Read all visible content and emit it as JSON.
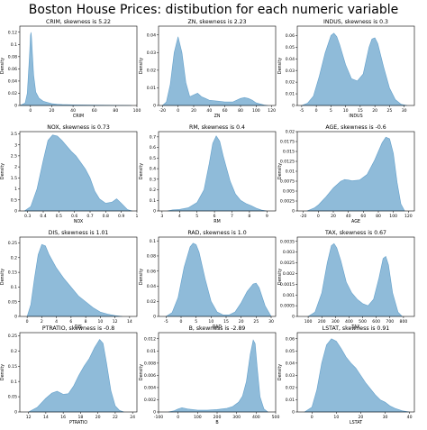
{
  "figure": {
    "title": "Boston House Prices: distibution for each numeric variable"
  },
  "chart_data": [
    {
      "type": "area",
      "title": "CRIM, skewness is 5.22",
      "xlabel": "CRIM",
      "ylabel": "Density",
      "xlim": [
        -10,
        100
      ],
      "ylim": [
        0,
        0.13
      ],
      "xticks": [
        0,
        20,
        40,
        60,
        80,
        100
      ],
      "yticks": [
        0,
        0.02,
        0.04,
        0.06,
        0.08,
        0.1,
        0.12
      ],
      "x": [
        -10,
        -5,
        -3,
        -1,
        0,
        0.5,
        1,
        2,
        3,
        5,
        8,
        12,
        16,
        20,
        25,
        30,
        40,
        50,
        60,
        70,
        80,
        90,
        95
      ],
      "y": [
        0,
        0.004,
        0.02,
        0.08,
        0.115,
        0.12,
        0.112,
        0.08,
        0.05,
        0.022,
        0.012,
        0.007,
        0.005,
        0.003,
        0.002,
        0.0015,
        0.001,
        0.0008,
        0.0006,
        0.0004,
        0.0003,
        0.0001,
        0
      ]
    },
    {
      "type": "area",
      "title": "ZN, skewness is 2.23",
      "xlabel": "ZN",
      "ylabel": "Density",
      "xlim": [
        -25,
        125
      ],
      "ylim": [
        0,
        0.045
      ],
      "xticks": [
        -20,
        0,
        20,
        40,
        60,
        80,
        100,
        120
      ],
      "yticks": [
        0,
        0.01,
        0.02,
        0.03,
        0.04
      ],
      "x": [
        -20,
        -15,
        -10,
        -5,
        0,
        5,
        10,
        15,
        20,
        25,
        30,
        35,
        40,
        50,
        60,
        70,
        80,
        85,
        90,
        95,
        100,
        110,
        115
      ],
      "y": [
        0,
        0.002,
        0.012,
        0.03,
        0.039,
        0.03,
        0.013,
        0.005,
        0.006,
        0.007,
        0.005,
        0.004,
        0.003,
        0.0025,
        0.002,
        0.002,
        0.004,
        0.0045,
        0.004,
        0.003,
        0.0015,
        0.0003,
        0
      ]
    },
    {
      "type": "area",
      "title": "INDUS, skewness is 0.3",
      "xlabel": "INDUS",
      "ylabel": "Density",
      "xlim": [
        -6.5,
        33.5
      ],
      "ylim": [
        0,
        0.068
      ],
      "xticks": [
        -5,
        0,
        5,
        10,
        15,
        20,
        25,
        30
      ],
      "yticks": [
        0,
        0.01,
        0.02,
        0.03,
        0.04,
        0.05,
        0.06
      ],
      "x": [
        -5,
        -3,
        -1,
        1,
        3,
        5,
        6,
        7,
        8,
        10,
        12,
        14,
        16,
        18,
        19,
        20,
        21,
        23,
        25,
        27,
        29,
        31
      ],
      "y": [
        0,
        0.002,
        0.008,
        0.025,
        0.045,
        0.06,
        0.062,
        0.059,
        0.052,
        0.035,
        0.023,
        0.021,
        0.027,
        0.05,
        0.057,
        0.058,
        0.053,
        0.033,
        0.015,
        0.005,
        0.001,
        0
      ]
    },
    {
      "type": "area",
      "title": "NOX, skewness is 0.73",
      "xlabel": "NOX",
      "ylabel": "Density",
      "xlim": [
        0.25,
        1.0
      ],
      "ylim": [
        0,
        3.6
      ],
      "xticks": [
        0.3,
        0.4,
        0.5,
        0.6,
        0.7,
        0.8,
        0.9,
        1.0
      ],
      "yticks": [
        0,
        0.5,
        1.0,
        1.5,
        2.0,
        2.5,
        3.0,
        3.5
      ],
      "x": [
        0.28,
        0.32,
        0.36,
        0.4,
        0.43,
        0.46,
        0.49,
        0.52,
        0.55,
        0.58,
        0.61,
        0.64,
        0.67,
        0.7,
        0.73,
        0.76,
        0.8,
        0.84,
        0.87,
        0.9,
        0.94,
        0.97
      ],
      "y": [
        0,
        0.2,
        1.0,
        2.3,
        3.2,
        3.45,
        3.4,
        3.2,
        2.95,
        2.7,
        2.5,
        2.2,
        1.9,
        1.5,
        0.9,
        0.55,
        0.35,
        0.4,
        0.55,
        0.35,
        0.06,
        0
      ]
    },
    {
      "type": "area",
      "title": "RM, skewness is 0.4",
      "xlabel": "RM",
      "ylabel": "Density",
      "xlim": [
        2.8,
        9.5
      ],
      "ylim": [
        0,
        0.75
      ],
      "xticks": [
        3,
        4,
        5,
        6,
        7,
        8,
        9
      ],
      "yticks": [
        0,
        0.1,
        0.2,
        0.3,
        0.4,
        0.5,
        0.6,
        0.7
      ],
      "x": [
        3.3,
        3.6,
        4.0,
        4.5,
        5.0,
        5.4,
        5.7,
        5.9,
        6.1,
        6.3,
        6.5,
        6.7,
        6.9,
        7.2,
        7.5,
        7.8,
        8.1,
        8.4,
        8.7,
        9.0
      ],
      "y": [
        0,
        0.01,
        0.015,
        0.03,
        0.08,
        0.2,
        0.45,
        0.64,
        0.71,
        0.66,
        0.52,
        0.4,
        0.28,
        0.16,
        0.1,
        0.07,
        0.05,
        0.025,
        0.008,
        0
      ]
    },
    {
      "type": "area",
      "title": "AGE, skewness is -0.6",
      "xlabel": "AGE",
      "ylabel": "Density",
      "xlim": [
        -28,
        128
      ],
      "ylim": [
        0,
        0.02
      ],
      "xticks": [
        -20,
        0,
        20,
        40,
        60,
        80,
        100,
        120
      ],
      "yticks": [
        0,
        0.0025,
        0.005,
        0.0075,
        0.01,
        0.0125,
        0.015,
        0.0175,
        0.02
      ],
      "x": [
        -15,
        -5,
        0,
        5,
        10,
        20,
        30,
        35,
        40,
        45,
        55,
        65,
        75,
        85,
        90,
        95,
        100,
        105,
        110,
        115
      ],
      "y": [
        0,
        0.0008,
        0.0015,
        0.0025,
        0.0035,
        0.0058,
        0.0075,
        0.0079,
        0.0078,
        0.0076,
        0.0078,
        0.0092,
        0.0128,
        0.0172,
        0.0186,
        0.0182,
        0.0145,
        0.0072,
        0.0018,
        0
      ]
    },
    {
      "type": "area",
      "title": "DIS, skewness is 1.01",
      "xlabel": "DIS",
      "ylabel": "Density",
      "xlim": [
        -1,
        15
      ],
      "ylim": [
        0,
        0.27
      ],
      "xticks": [
        0,
        2,
        4,
        6,
        8,
        10,
        12,
        14
      ],
      "yticks": [
        0,
        0.05,
        0.1,
        0.15,
        0.2,
        0.25
      ],
      "x": [
        0,
        0.5,
        1.0,
        1.5,
        2.0,
        2.5,
        3.0,
        4.0,
        5.0,
        6.0,
        7.0,
        8.0,
        9.0,
        10.0,
        11.0,
        12.0,
        13.0
      ],
      "y": [
        0,
        0.04,
        0.13,
        0.21,
        0.245,
        0.24,
        0.21,
        0.165,
        0.13,
        0.1,
        0.07,
        0.05,
        0.03,
        0.015,
        0.008,
        0.003,
        0
      ]
    },
    {
      "type": "area",
      "title": "RAD, skewness is 1.0",
      "xlabel": "RAD",
      "ylabel": "Density",
      "xlim": [
        -7.5,
        31.5
      ],
      "ylim": [
        0,
        0.105
      ],
      "xticks": [
        -5,
        0,
        5,
        10,
        15,
        20,
        25,
        30
      ],
      "yticks": [
        0,
        0.02,
        0.04,
        0.06,
        0.08,
        0.1
      ],
      "x": [
        -5,
        -3,
        -1,
        1,
        3,
        4,
        5,
        6,
        8,
        10,
        12,
        14,
        16,
        18,
        20,
        22,
        24,
        25,
        26,
        28,
        30
      ],
      "y": [
        0,
        0.005,
        0.025,
        0.065,
        0.092,
        0.097,
        0.095,
        0.085,
        0.05,
        0.02,
        0.006,
        0.002,
        0.002,
        0.006,
        0.018,
        0.033,
        0.043,
        0.044,
        0.038,
        0.014,
        0
      ]
    },
    {
      "type": "area",
      "title": "TAX, skewness is 0.67",
      "xlabel": "TAX",
      "ylabel": "Density",
      "xlim": [
        20,
        880
      ],
      "ylim": [
        0,
        0.0037
      ],
      "xticks": [
        100,
        200,
        300,
        400,
        500,
        600,
        700,
        800
      ],
      "yticks": [
        0,
        0.0005,
        0.001,
        0.0015,
        0.002,
        0.0025,
        0.003,
        0.0035
      ],
      "x": [
        100,
        150,
        200,
        240,
        270,
        290,
        310,
        340,
        380,
        420,
        460,
        500,
        540,
        580,
        620,
        650,
        670,
        690,
        720,
        760,
        790
      ],
      "y": [
        0,
        0.0002,
        0.0011,
        0.0025,
        0.0033,
        0.0034,
        0.0032,
        0.0026,
        0.0016,
        0.0011,
        0.0008,
        0.0006,
        0.0005,
        0.0008,
        0.0018,
        0.0027,
        0.0028,
        0.0024,
        0.0011,
        0.0002,
        0
      ]
    },
    {
      "type": "area",
      "title": "PTRATIO, skewness is -0.8",
      "xlabel": "PTRATIO",
      "ylabel": "Density",
      "xlim": [
        11,
        24.5
      ],
      "ylim": [
        0,
        0.26
      ],
      "xticks": [
        12,
        14,
        16,
        18,
        20,
        22,
        24
      ],
      "yticks": [
        0,
        0.05,
        0.1,
        0.15,
        0.2,
        0.25
      ],
      "x": [
        12.0,
        13.0,
        13.5,
        14.0,
        14.7,
        15.3,
        16.0,
        16.6,
        17.2,
        17.8,
        18.4,
        19.0,
        19.6,
        20.2,
        20.6,
        21.0,
        21.5,
        22.0,
        22.5,
        23.0
      ],
      "y": [
        0,
        0.015,
        0.03,
        0.045,
        0.062,
        0.068,
        0.058,
        0.06,
        0.085,
        0.12,
        0.15,
        0.175,
        0.21,
        0.238,
        0.225,
        0.16,
        0.07,
        0.02,
        0.005,
        0
      ]
    },
    {
      "type": "area",
      "title": "B, skewness is -2.89",
      "xlabel": "B",
      "ylabel": "Density",
      "xlim": [
        -100,
        500
      ],
      "ylim": [
        0,
        0.013
      ],
      "xticks": [
        -100,
        0,
        100,
        200,
        300,
        400,
        500
      ],
      "yticks": [
        0,
        0.002,
        0.004,
        0.006,
        0.008,
        0.01,
        0.012
      ],
      "x": [
        -50,
        -20,
        0,
        20,
        50,
        100,
        150,
        200,
        250,
        280,
        310,
        330,
        350,
        370,
        385,
        395,
        405,
        420,
        440,
        460
      ],
      "y": [
        0,
        0.0002,
        0.0005,
        0.0007,
        0.0005,
        0.0003,
        0.0003,
        0.0004,
        0.0006,
        0.0009,
        0.0016,
        0.0026,
        0.005,
        0.0095,
        0.0118,
        0.0112,
        0.0075,
        0.0025,
        0.0005,
        0
      ]
    },
    {
      "type": "area",
      "title": "LSTAT, skewness is 0.91",
      "xlabel": "LSTAT",
      "ylabel": "Density",
      "xlim": [
        -6,
        42
      ],
      "ylim": [
        0,
        0.065
      ],
      "xticks": [
        0,
        10,
        20,
        30,
        40
      ],
      "yticks": [
        0,
        0.01,
        0.02,
        0.03,
        0.04,
        0.05,
        0.06
      ],
      "x": [
        -3,
        0,
        2,
        4,
        6,
        8,
        10,
        12,
        14,
        16,
        18,
        20,
        22,
        24,
        26,
        28,
        30,
        32,
        34,
        37,
        40
      ],
      "y": [
        0,
        0.004,
        0.018,
        0.04,
        0.055,
        0.06,
        0.058,
        0.052,
        0.045,
        0.04,
        0.036,
        0.03,
        0.024,
        0.019,
        0.014,
        0.01,
        0.008,
        0.005,
        0.003,
        0.001,
        0
      ]
    }
  ]
}
